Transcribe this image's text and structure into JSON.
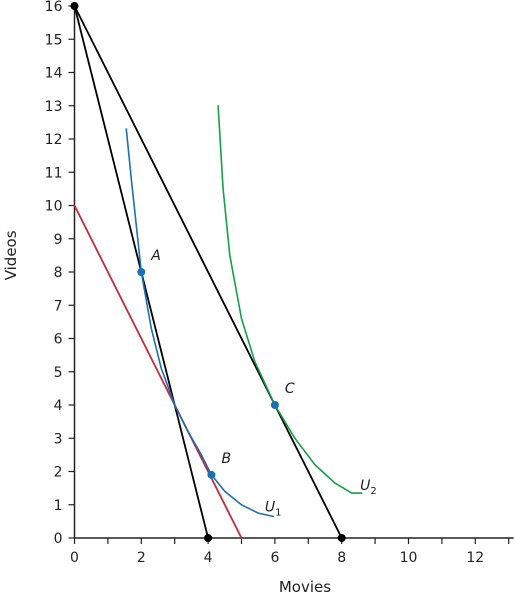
{
  "chart_data": {
    "type": "line",
    "xlabel": "Movies",
    "ylabel": "Videos",
    "xlim": [
      0,
      13
    ],
    "ylim": [
      0,
      16
    ],
    "x_ticks": [
      "0",
      "2",
      "4",
      "6",
      "8",
      "10",
      "12"
    ],
    "y_ticks": [
      "0",
      "1",
      "2",
      "3",
      "4",
      "5",
      "6",
      "7",
      "8",
      "9",
      "10",
      "11",
      "12",
      "13",
      "14",
      "15",
      "16"
    ],
    "grid": false,
    "colors": {
      "budget_line": "#000000",
      "red_line": "#c8283c",
      "u1": "#1b6fb5",
      "u2": "#14a04a",
      "point_blue": "#1b6fb5",
      "endpoint": "#000000"
    },
    "series": [
      {
        "key": "budget_1",
        "color_key": "budget_line",
        "points": [
          [
            0,
            16
          ],
          [
            4,
            0
          ]
        ]
      },
      {
        "key": "budget_2",
        "color_key": "budget_line",
        "points": [
          [
            0,
            16
          ],
          [
            8,
            0
          ]
        ]
      },
      {
        "key": "budget_red",
        "color_key": "red_line",
        "points": [
          [
            0,
            10
          ],
          [
            5,
            0
          ]
        ]
      },
      {
        "key": "U1",
        "name": "U",
        "sub": "1",
        "color_key": "u1",
        "points": [
          [
            1.55,
            12.3
          ],
          [
            1.7,
            10.8
          ],
          [
            1.85,
            9.4
          ],
          [
            2.0,
            8.0
          ],
          [
            2.3,
            6.3
          ],
          [
            2.6,
            5.1
          ],
          [
            3.0,
            4.0
          ],
          [
            3.4,
            3.2
          ],
          [
            3.8,
            2.5
          ],
          [
            4.1,
            1.9
          ],
          [
            4.5,
            1.4
          ],
          [
            5.0,
            1.0
          ],
          [
            5.5,
            0.75
          ],
          [
            5.95,
            0.65
          ]
        ],
        "label_at": [
          5.7,
          0.8
        ]
      },
      {
        "key": "U2",
        "name": "U",
        "sub": "2",
        "color_key": "u2",
        "points": [
          [
            4.3,
            13.0
          ],
          [
            4.45,
            10.5
          ],
          [
            4.65,
            8.5
          ],
          [
            5.0,
            6.6
          ],
          [
            5.4,
            5.3
          ],
          [
            6.0,
            4.0
          ],
          [
            6.6,
            3.0
          ],
          [
            7.2,
            2.2
          ],
          [
            7.8,
            1.65
          ],
          [
            8.3,
            1.35
          ],
          [
            8.6,
            1.35
          ]
        ],
        "label_at": [
          8.55,
          1.45
        ]
      }
    ],
    "points": [
      {
        "label": "A",
        "x": 2,
        "y": 8,
        "color_key": "point_blue"
      },
      {
        "label": "B",
        "x": 4.1,
        "y": 1.9,
        "color_key": "point_blue"
      },
      {
        "label": "C",
        "x": 6,
        "y": 4,
        "color_key": "point_blue"
      },
      {
        "label": "",
        "x": 0,
        "y": 16,
        "color_key": "endpoint"
      },
      {
        "label": "",
        "x": 4,
        "y": 0,
        "color_key": "endpoint"
      },
      {
        "label": "",
        "x": 8,
        "y": 0,
        "color_key": "endpoint"
      }
    ]
  }
}
